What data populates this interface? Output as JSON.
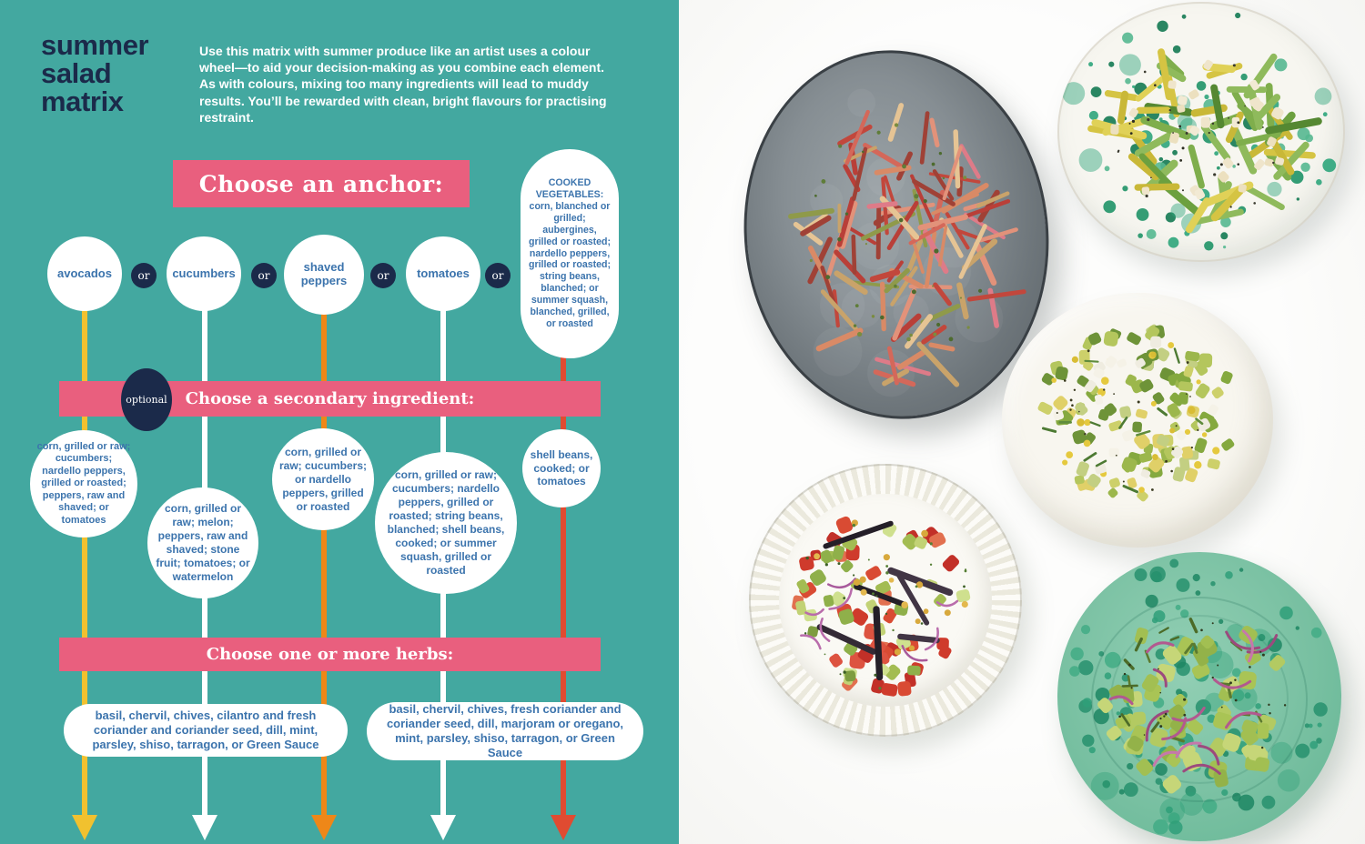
{
  "page": {
    "title": "summer salad matrix",
    "intro": "Use this matrix with summer produce like an artist uses a colour wheel—to aid your decision-making as you combine each element. As with colours, mixing too many ingredients will lead to muddy results. You’ll be rewarded with clean, bright flavours for practising restraint."
  },
  "colors": {
    "page_background": "#43A8A0",
    "banner_pink": "#E95F7E",
    "navy": "#1B2A4A",
    "bubble_text_blue": "#3C74AD",
    "bubble_white": "#FFFFFF"
  },
  "matrix": {
    "anchor_banner": "Choose an anchor:",
    "or_label": "or",
    "secondary_banner": "Choose a secondary ingredient:",
    "optional_label": "optional",
    "herbs_banner": "Choose one or more herbs:",
    "columns": [
      {
        "anchor": "avocados",
        "color": "#F1C12F",
        "secondary": "corn, grilled or raw; cucumbers; nardello peppers, grilled or roasted; peppers, raw and shaved; or tomatoes"
      },
      {
        "anchor": "cucumbers",
        "color": "#FFFFFF",
        "secondary": "corn, grilled or raw; melon; peppers, raw and shaved; stone fruit; tomatoes; or watermelon"
      },
      {
        "anchor": "shaved peppers",
        "color": "#EE8718",
        "secondary": "corn, grilled or raw; cucumbers; or nardello peppers, grilled or roasted"
      },
      {
        "anchor": "tomatoes",
        "color": "#FFFFFF",
        "secondary": "corn, grilled or raw; cucumbers; nardello peppers, grilled or roasted; string beans, blanched; shell beans, cooked; or summer squash, grilled or roasted"
      },
      {
        "anchor_heading": "COOKED VEGETABLES:",
        "anchor_body": " corn, blanched or grilled; aubergines, grilled or roasted; nardello peppers, grilled or roasted; string beans, blanched; or summer squash, blanched, grilled, or roasted",
        "color": "#E04B31",
        "secondary": "shell beans, cooked; or tomatoes"
      }
    ],
    "herbs": [
      "basil, chervil, chives, cilantro and fresh coriander and coriander seed, dill, mint, parsley, shiso, tarragon, or Green Sauce",
      "basil, chervil, chives, fresh coriander and coriander seed, dill, marjoram or oregano, mint, parsley, shiso, tarragon, or Green Sauce"
    ]
  },
  "photos": [
    {
      "name": "shredded pepper slaw on grey platter"
    },
    {
      "name": "yellow and green beans with white beans on green-splatter plate"
    },
    {
      "name": "chopped avocado, corn and feta salad on cream plate"
    },
    {
      "name": "tomato, cucumber and charred pepper salad on fluted plate"
    },
    {
      "name": "cucumber and red onion salad on green speckled plate"
    }
  ]
}
